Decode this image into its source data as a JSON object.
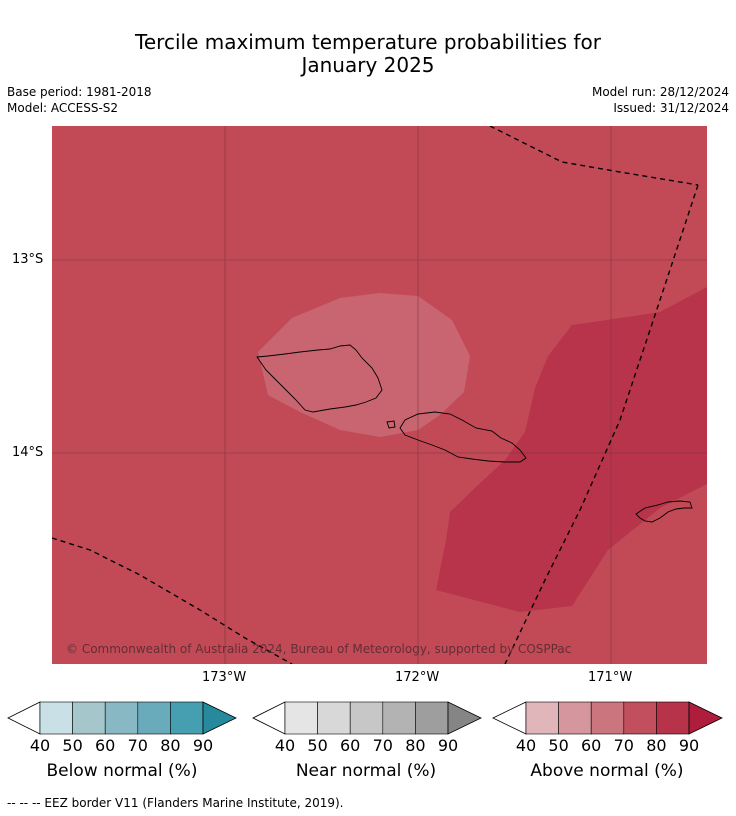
{
  "header": {
    "title_line1": "Tercile maximum temperature probabilities for",
    "title_line2": "January 2025",
    "base_period": "Base period: 1981-2018",
    "model": "Model: ACCESS-S2",
    "model_run": "Model run: 28/12/2024",
    "issued": "Issued: 31/12/2024"
  },
  "map": {
    "background_category": "Above normal 70-80%",
    "regions": [
      {
        "name": "Above normal 70-80% (background)",
        "color": "#c24a57"
      },
      {
        "name": "Above normal 60-70% (around Savai'i)",
        "color": "#c96570"
      },
      {
        "name": "Above normal 80-90% (east, around Tutuila)",
        "color": "#b8344a"
      }
    ],
    "lat_labels": [
      "13°S",
      "14°S"
    ],
    "lon_labels": [
      "173°W",
      "172°W",
      "171°W"
    ],
    "copyright": "© Commonwealth of Australia 2024, Bureau of Meteorology, supported by COSPPac",
    "gridline_color": "#7a3840"
  },
  "colorbars": [
    {
      "label": "Below normal (%)",
      "ticks": [
        "40",
        "50",
        "60",
        "70",
        "80",
        "90"
      ],
      "colors": [
        "#ffffff",
        "#c8e0e6",
        "#a5c6cb",
        "#88b8c3",
        "#6aabbb",
        "#469fb1",
        "#268a9c"
      ]
    },
    {
      "label": "Near normal (%)",
      "ticks": [
        "40",
        "50",
        "60",
        "70",
        "80",
        "90"
      ],
      "colors": [
        "#ffffff",
        "#e5e5e5",
        "#d8d8d8",
        "#c7c7c7",
        "#b3b3b3",
        "#9e9e9e",
        "#858585"
      ]
    },
    {
      "label": "Above normal (%)",
      "ticks": [
        "40",
        "50",
        "60",
        "70",
        "80",
        "90"
      ],
      "colors": [
        "#ffffff",
        "#e0b6bb",
        "#d5969d",
        "#cb757f",
        "#c24f5d",
        "#b7334a",
        "#ae1d3c"
      ]
    }
  ],
  "footnote": "-- -- -- EEZ border V11 (Flanders Marine Institute, 2019)."
}
